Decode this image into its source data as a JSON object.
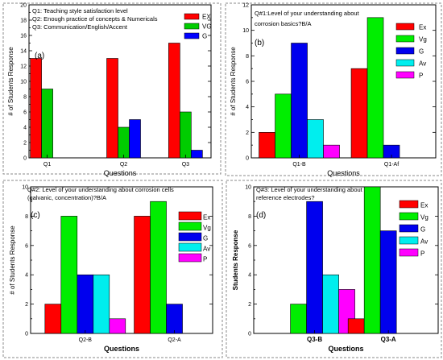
{
  "chart_data": [
    {
      "type": "bar",
      "panel": "(a)",
      "title_lines": [
        "Q1: Teaching style satisfaction level",
        "Q2: Enough practice of concepts & Numericals",
        "Q3: Communication/English/Accent"
      ],
      "xlabel": "Questions",
      "ylabel": "# of Students Response",
      "ylim": [
        0,
        20
      ],
      "yticks": [
        0,
        2,
        4,
        6,
        8,
        10,
        12,
        14,
        16,
        18,
        20
      ],
      "categories": [
        "Q1",
        "Q2",
        "Q3"
      ],
      "series": [
        {
          "name": "EX",
          "color": "#ff0000",
          "values": [
            13,
            13,
            15
          ]
        },
        {
          "name": "VG",
          "color": "#00cc00",
          "values": [
            9,
            4,
            6
          ]
        },
        {
          "name": "G",
          "color": "#0000ff",
          "values": [
            0,
            5,
            1
          ]
        }
      ],
      "legend": "top-right"
    },
    {
      "type": "bar",
      "panel": "(b)",
      "title_lines": [
        "Q#1:Level of  your understanding about",
        "corrosion basics?B/A"
      ],
      "xlabel": "Questions",
      "ylabel": "# of Students Response",
      "ylim": [
        0,
        12
      ],
      "yticks": [
        0,
        2,
        4,
        6,
        8,
        10,
        12
      ],
      "categories": [
        "Q1-B",
        "Q1-Af"
      ],
      "series": [
        {
          "name": "Ex",
          "color": "#ff0000",
          "values": [
            2,
            7
          ]
        },
        {
          "name": "Vg",
          "color": "#00ee00",
          "values": [
            5,
            11
          ]
        },
        {
          "name": "G",
          "color": "#0000ee",
          "values": [
            9,
            1
          ]
        },
        {
          "name": "Av",
          "color": "#00eeee",
          "values": [
            3,
            0
          ]
        },
        {
          "name": "P",
          "color": "#ff00ff",
          "values": [
            1,
            0
          ]
        }
      ],
      "legend": "top-right"
    },
    {
      "type": "bar",
      "panel": "(c)",
      "title_lines": [
        "Q#2: Level of  your understanding about corrosion cells",
        "(galvanic, concentration)?B/A"
      ],
      "xlabel": "Questions",
      "ylabel": "# of Students Response",
      "ylim": [
        0,
        10
      ],
      "yticks": [
        0,
        2,
        4,
        6,
        8,
        10
      ],
      "categories": [
        "Q2-B",
        "Q2-A"
      ],
      "series": [
        {
          "name": "Ex",
          "color": "#ff0000",
          "values": [
            2,
            8
          ]
        },
        {
          "name": "Vg",
          "color": "#00ee00",
          "values": [
            8,
            9
          ]
        },
        {
          "name": "G",
          "color": "#0000ee",
          "values": [
            4,
            2
          ]
        },
        {
          "name": "Av",
          "color": "#00eeee",
          "values": [
            4,
            0
          ]
        },
        {
          "name": "P",
          "color": "#ff00ff",
          "values": [
            1,
            0
          ]
        }
      ],
      "legend": "top-right"
    },
    {
      "type": "bar",
      "panel": "(d)",
      "title_lines": [
        "Q#3: Level of  your understanding about",
        "reference electrodes?"
      ],
      "xlabel": "Questions",
      "ylabel": "Students Response",
      "ylim": [
        0,
        10
      ],
      "yticks": [
        0,
        2,
        4,
        6,
        8,
        10
      ],
      "categories": [
        "Q3-B",
        "Q3-A"
      ],
      "series": [
        {
          "name": "Ex",
          "color": "#ff0000",
          "values": [
            0,
            1
          ]
        },
        {
          "name": "Vg",
          "color": "#00ee00",
          "values": [
            2,
            10
          ]
        },
        {
          "name": "G",
          "color": "#0000ee",
          "values": [
            9,
            7
          ]
        },
        {
          "name": "Av",
          "color": "#00eeee",
          "values": [
            4,
            0
          ]
        },
        {
          "name": "P",
          "color": "#ff00ff",
          "values": [
            3,
            0
          ]
        }
      ],
      "legend": "top-right"
    }
  ]
}
